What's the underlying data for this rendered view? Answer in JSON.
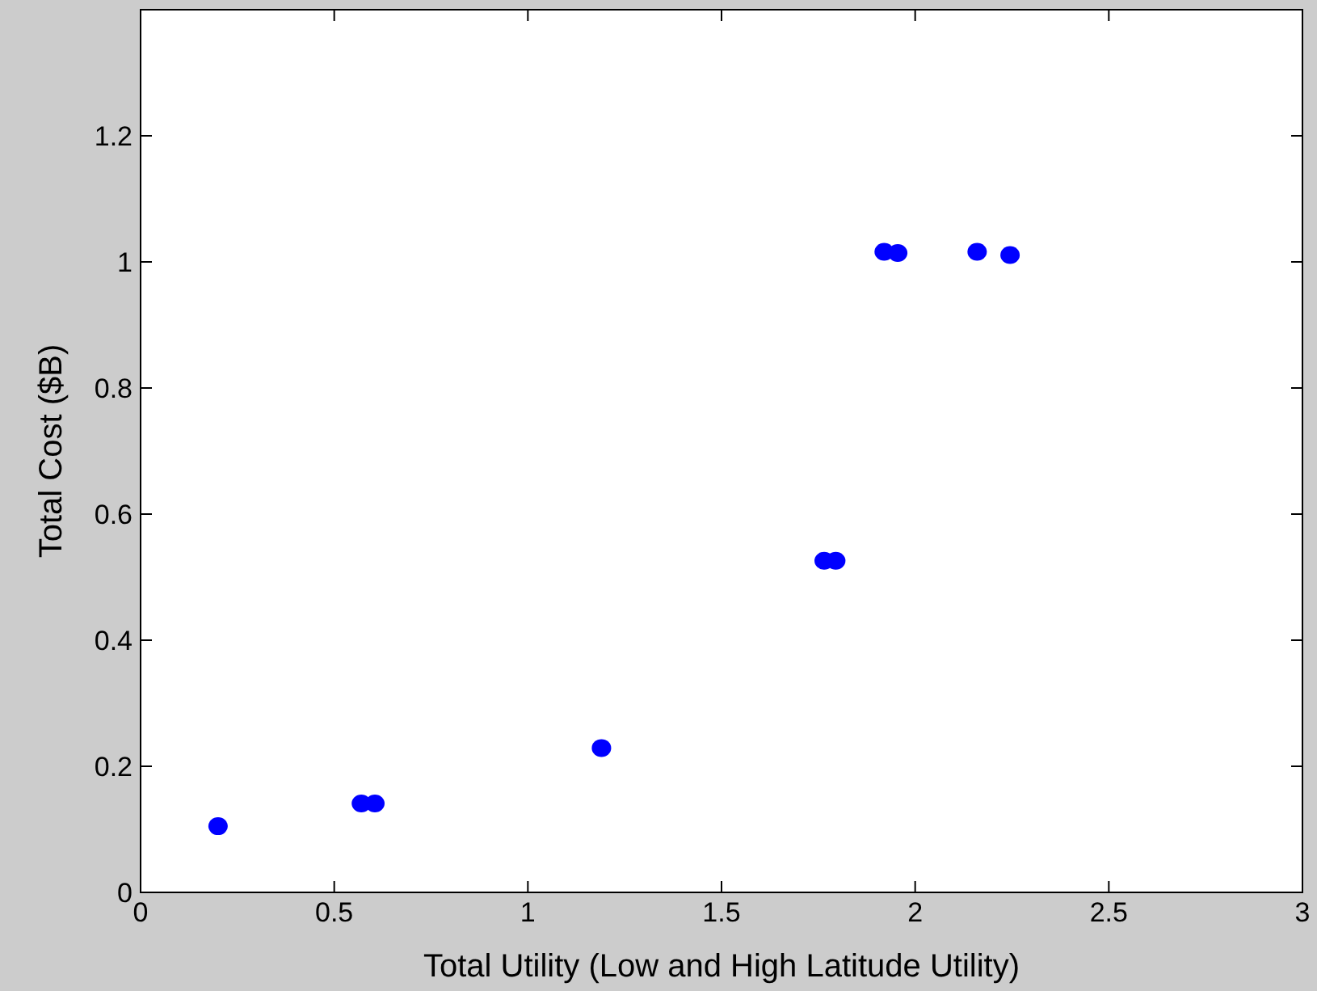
{
  "chart_data": {
    "type": "scatter",
    "xlabel": "Total Utility (Low and High Latitude Utility)",
    "ylabel": "Total Cost ($B)",
    "x": [
      0.2,
      0.57,
      0.605,
      1.19,
      1.765,
      1.795,
      1.92,
      1.955,
      2.16,
      2.245
    ],
    "series": [
      {
        "color": "#0000ff",
        "values": [
          0.105,
          0.141,
          0.141,
          0.229,
          0.526,
          0.526,
          1.016,
          1.014,
          1.016,
          1.011
        ]
      }
    ],
    "xlim": [
      0,
      3
    ],
    "ylim": [
      0,
      1.4
    ],
    "xticks": [
      0,
      0.5,
      1,
      1.5,
      2,
      2.5,
      3
    ],
    "yticks": [
      0,
      0.2,
      0.4,
      0.6,
      0.8,
      1,
      1.2
    ],
    "marker": "circle",
    "grid": false
  }
}
